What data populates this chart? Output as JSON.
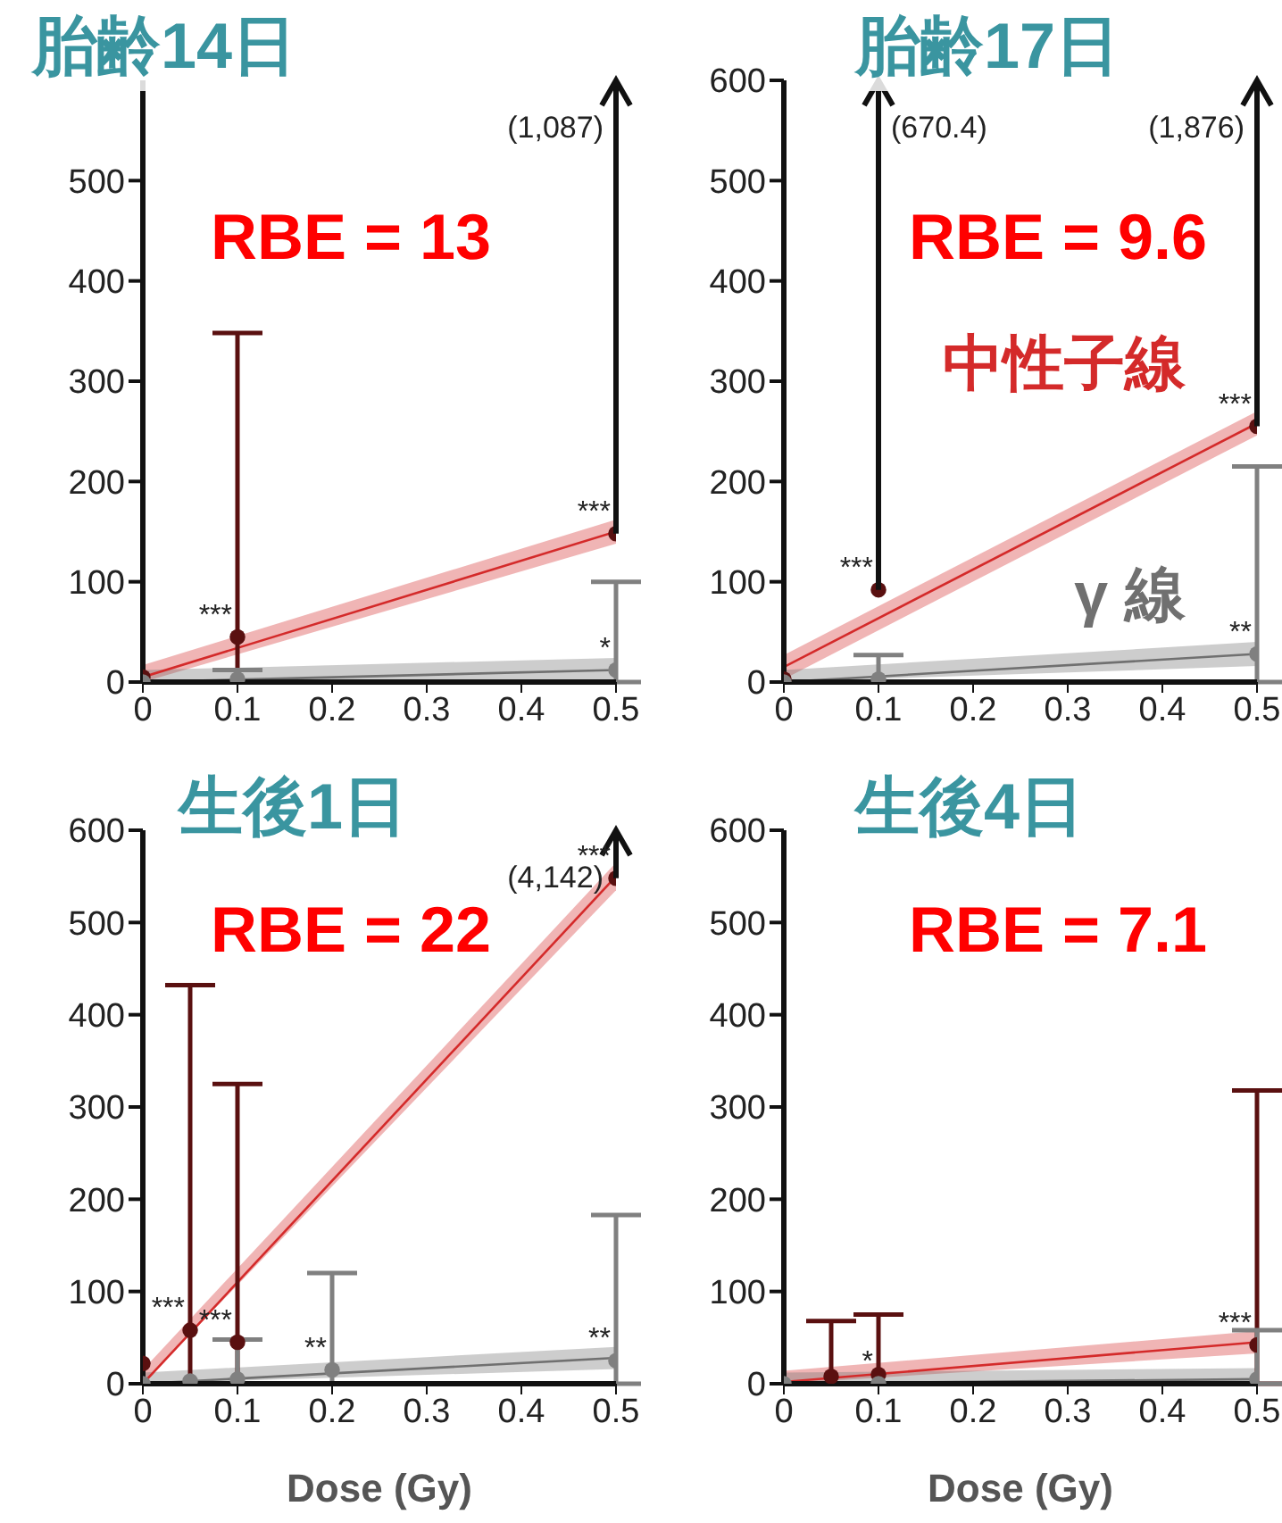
{
  "chart_data": [
    {
      "type": "scatter",
      "title": "胎齢14日",
      "xlim": [
        0,
        0.5
      ],
      "xticks": [
        0,
        0.1,
        0.2,
        0.3,
        0.4,
        0.5
      ],
      "ylim": [
        0,
        600
      ],
      "yticks": [
        0,
        100,
        200,
        300,
        400,
        500
      ],
      "marker": "circle",
      "annotations": [
        "RBE = 13",
        "(1,087)"
      ],
      "series": [
        {
          "type": "line",
          "marker": "none",
          "color": "#d42a2a",
          "x": [
            0,
            0.5
          ],
          "values": [
            5,
            150
          ],
          "lower": [
            0,
            138
          ],
          "upper": [
            17,
            162
          ]
        },
        {
          "type": "line",
          "marker": "none",
          "color": "#707070",
          "x": [
            0,
            0.5
          ],
          "values": [
            0,
            12
          ],
          "lower": [
            0,
            0
          ],
          "upper": [
            12,
            24
          ]
        },
        {
          "color": "#5a1010",
          "x": [
            0,
            0.1,
            0.5
          ],
          "values": [
            5,
            45,
            148
          ],
          "errors": [
            null,
            [
              0,
              348
            ],
            null
          ],
          "value_labels": [
            null,
            "***",
            "***"
          ]
        },
        {
          "color": "#808080",
          "x": [
            0,
            0.1,
            0.5
          ],
          "values": [
            0,
            3,
            12
          ],
          "errors": [
            null,
            [
              0,
              12
            ],
            [
              0,
              100
            ]
          ],
          "value_labels": [
            null,
            null,
            "*"
          ]
        }
      ]
    },
    {
      "type": "scatter",
      "title": "胎齢17日",
      "xlim": [
        0,
        0.5
      ],
      "xticks": [
        0,
        0.1,
        0.2,
        0.3,
        0.4,
        0.5
      ],
      "ylim": [
        0,
        600
      ],
      "yticks": [
        0,
        100,
        200,
        300,
        400,
        500,
        600
      ],
      "marker": "circle",
      "annotations": [
        "RBE = 9.6",
        "(670.4)",
        "(1,876)"
      ],
      "series": [
        {
          "type": "line",
          "marker": "none",
          "name": "中性子線",
          "color": "#d42a2a",
          "x": [
            0,
            0.5
          ],
          "values": [
            15,
            258
          ],
          "lower": [
            3,
            246
          ],
          "upper": [
            27,
            270
          ]
        },
        {
          "type": "line",
          "marker": "none",
          "name": "γ 線",
          "color": "#707070",
          "x": [
            0,
            0.5
          ],
          "values": [
            0,
            28
          ],
          "lower": [
            0,
            16
          ],
          "upper": [
            12,
            40
          ]
        },
        {
          "color": "#5a1010",
          "x": [
            0,
            0.1,
            0.5
          ],
          "values": [
            3,
            92,
            255
          ],
          "errors": [
            null,
            null,
            null
          ],
          "value_labels": [
            null,
            "***",
            "***"
          ]
        },
        {
          "color": "#808080",
          "x": [
            0,
            0.1,
            0.5
          ],
          "values": [
            0,
            3,
            28
          ],
          "errors": [
            null,
            [
              0,
              27
            ],
            [
              0,
              215
            ]
          ],
          "value_labels": [
            null,
            null,
            "**"
          ]
        }
      ]
    },
    {
      "type": "scatter",
      "title": "生後1日",
      "xlabel": "Dose (Gy)",
      "xlim": [
        0,
        0.5
      ],
      "xticks": [
        0,
        0.1,
        0.2,
        0.3,
        0.4,
        0.5
      ],
      "ylim": [
        0,
        600
      ],
      "yticks": [
        0,
        100,
        200,
        300,
        400,
        500,
        600
      ],
      "marker": "circle",
      "annotations": [
        "RBE = 22",
        "(4,142)"
      ],
      "series": [
        {
          "type": "line",
          "marker": "none",
          "color": "#d42a2a",
          "x": [
            0,
            0.5
          ],
          "values": [
            0,
            550
          ],
          "lower": [
            0,
            535
          ],
          "upper": [
            15,
            565
          ]
        },
        {
          "type": "line",
          "marker": "none",
          "color": "#707070",
          "x": [
            0,
            0.5
          ],
          "values": [
            0,
            28
          ],
          "lower": [
            0,
            16
          ],
          "upper": [
            12,
            40
          ]
        },
        {
          "color": "#5a1010",
          "x": [
            0,
            0.05,
            0.1,
            0.5
          ],
          "values": [
            22,
            58,
            45,
            548
          ],
          "errors": [
            null,
            [
              0,
              432
            ],
            [
              0,
              325
            ],
            null
          ],
          "value_labels": [
            null,
            "***",
            "***",
            "***"
          ]
        },
        {
          "color": "#808080",
          "x": [
            0,
            0.05,
            0.1,
            0.2,
            0.5
          ],
          "values": [
            0,
            3,
            5,
            15,
            25
          ],
          "errors": [
            null,
            null,
            [
              0,
              48
            ],
            [
              0,
              120
            ],
            [
              0,
              183
            ]
          ],
          "value_labels": [
            null,
            null,
            null,
            "**",
            "**"
          ]
        }
      ]
    },
    {
      "type": "scatter",
      "title": "生後4日",
      "xlabel": "Dose (Gy)",
      "xlim": [
        0,
        0.5
      ],
      "xticks": [
        0,
        0.1,
        0.2,
        0.3,
        0.4,
        0.5
      ],
      "ylim": [
        0,
        600
      ],
      "yticks": [
        0,
        100,
        200,
        300,
        400,
        500,
        600
      ],
      "marker": "circle",
      "annotations": [
        "RBE = 7.1"
      ],
      "series": [
        {
          "type": "line",
          "marker": "none",
          "color": "#d42a2a",
          "x": [
            0,
            0.5
          ],
          "values": [
            2,
            45
          ],
          "lower": [
            0,
            33
          ],
          "upper": [
            14,
            57
          ]
        },
        {
          "type": "line",
          "marker": "none",
          "color": "#707070",
          "x": [
            0,
            0.5
          ],
          "values": [
            0,
            5
          ],
          "lower": [
            0,
            0
          ],
          "upper": [
            12,
            17
          ]
        },
        {
          "color": "#5a1010",
          "x": [
            0.05,
            0.1,
            0.5
          ],
          "values": [
            8,
            10,
            42
          ],
          "errors": [
            [
              0,
              68
            ],
            [
              0,
              75
            ],
            [
              0,
              318
            ]
          ],
          "value_labels": [
            null,
            null,
            "***"
          ]
        },
        {
          "color": "#808080",
          "x": [
            0,
            0.1,
            0.5
          ],
          "values": [
            0,
            0,
            5
          ],
          "errors": [
            null,
            null,
            [
              0,
              58
            ]
          ],
          "value_labels": [
            null,
            "*",
            null
          ]
        }
      ]
    }
  ]
}
